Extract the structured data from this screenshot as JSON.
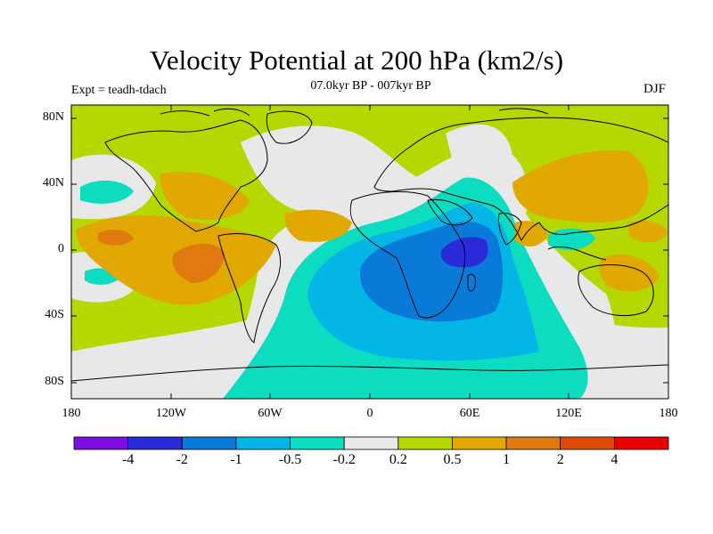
{
  "title": "Velocity Potential at 200 hPa (km2/s)",
  "subtitle": "07.0kyr BP - 007kyr BP",
  "experiment": "Expt = teadh-tdach",
  "season": "DJF",
  "lat_labels": [
    "80N",
    "40N",
    "0",
    "40S",
    "80S"
  ],
  "lon_labels": [
    "180",
    "120W",
    "60W",
    "0",
    "60E",
    "120E",
    "180"
  ],
  "colorbar": {
    "labels": [
      "-4",
      "-2",
      "-1",
      "-0.5",
      "-0.2",
      "0.2",
      "0.5",
      "1",
      "2",
      "4"
    ],
    "colors": [
      "#7b0ee0",
      "#2a2ad8",
      "#0a7ad8",
      "#04b6e6",
      "#0cdcc0",
      "#e8e8e8",
      "#b4d800",
      "#e0a800",
      "#e07a10",
      "#e04c08",
      "#e80000"
    ]
  },
  "palette": {
    "near_zero": "#e8e8e8",
    "pos_weak": "#b4d800",
    "pos_mid": "#e0a800",
    "pos_strong": "#e07a10",
    "neg_weak": "#0cdcc0",
    "neg_mid": "#04b6e6",
    "neg_strong": "#0a7ad8",
    "neg_very_strong": "#2a2ad8"
  }
}
